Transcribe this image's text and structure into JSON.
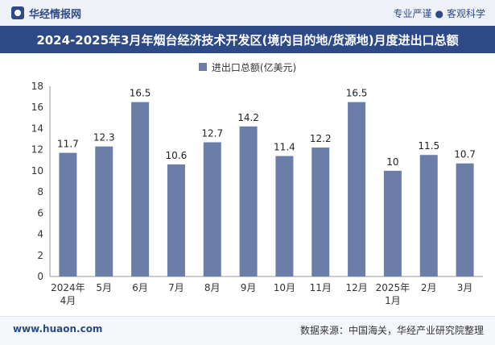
{
  "header": {
    "brand": "华经情报网",
    "slogan_left": "专业严谨",
    "slogan_dot": "●",
    "slogan_right": "客观科学"
  },
  "title": "2024-2025年3月年烟台经济技术开发区(境内目的地/货源地)月度进出口总额",
  "footer": {
    "url": "www.huaon.com",
    "source": "数据来源：中国海关，华经产业研究院整理"
  },
  "colors": {
    "bar": "#6b7ea8",
    "brand": "#2d4a87"
  },
  "chart_data": {
    "type": "bar",
    "title": "2024-2025年3月年烟台经济技术开发区(境内目的地/货源地)月度进出口总额",
    "legend": "进出口总额(亿美元)",
    "xlabel": "",
    "ylabel": "",
    "ylim": [
      0,
      18
    ],
    "yticks": [
      0,
      2,
      4,
      6,
      8,
      10,
      12,
      14,
      16,
      18
    ],
    "categories": [
      [
        "2024年",
        "4月"
      ],
      [
        "5月"
      ],
      [
        "6月"
      ],
      [
        "7月"
      ],
      [
        "8月"
      ],
      [
        "9月"
      ],
      [
        "10月"
      ],
      [
        "11月"
      ],
      [
        "12月"
      ],
      [
        "2025年",
        "1月"
      ],
      [
        "2月"
      ],
      [
        "3月"
      ]
    ],
    "series": [
      {
        "name": "进出口总额(亿美元)",
        "values": [
          11.7,
          12.3,
          16.5,
          10.6,
          12.7,
          14.2,
          11.4,
          12.2,
          16.5,
          10,
          11.5,
          10.7
        ]
      }
    ]
  }
}
